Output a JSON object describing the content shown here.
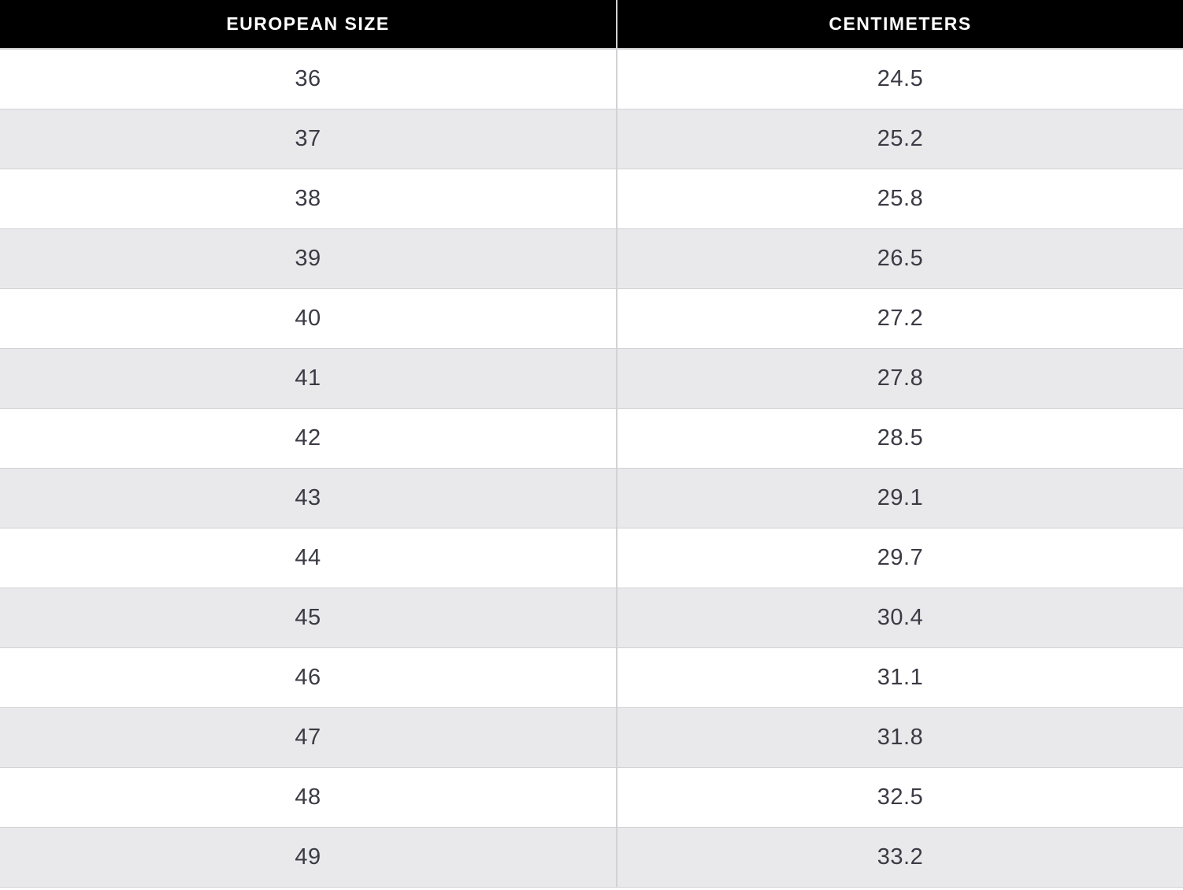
{
  "table": {
    "headers": [
      "EUROPEAN SIZE",
      "CENTIMETERS"
    ],
    "rows": [
      {
        "size": "36",
        "cm": "24.5"
      },
      {
        "size": "37",
        "cm": "25.2"
      },
      {
        "size": "38",
        "cm": "25.8"
      },
      {
        "size": "39",
        "cm": "26.5"
      },
      {
        "size": "40",
        "cm": "27.2"
      },
      {
        "size": "41",
        "cm": "27.8"
      },
      {
        "size": "42",
        "cm": "28.5"
      },
      {
        "size": "43",
        "cm": "29.1"
      },
      {
        "size": "44",
        "cm": "29.7"
      },
      {
        "size": "45",
        "cm": "30.4"
      },
      {
        "size": "46",
        "cm": "31.1"
      },
      {
        "size": "47",
        "cm": "31.8"
      },
      {
        "size": "48",
        "cm": "32.5"
      },
      {
        "size": "49",
        "cm": "33.2"
      }
    ]
  },
  "colors": {
    "header_bg": "#000000",
    "header_text": "#ffffff",
    "row_alt_bg": "#e9e8ea",
    "row_bg": "#ffffff",
    "border": "#d2d1d3",
    "text": "#3b3b45"
  },
  "chart_data": {
    "type": "table",
    "columns": [
      "EUROPEAN SIZE",
      "CENTIMETERS"
    ],
    "rows": [
      [
        36,
        24.5
      ],
      [
        37,
        25.2
      ],
      [
        38,
        25.8
      ],
      [
        39,
        26.5
      ],
      [
        40,
        27.2
      ],
      [
        41,
        27.8
      ],
      [
        42,
        28.5
      ],
      [
        43,
        29.1
      ],
      [
        44,
        29.7
      ],
      [
        45,
        30.4
      ],
      [
        46,
        31.1
      ],
      [
        47,
        31.8
      ],
      [
        48,
        32.5
      ],
      [
        49,
        33.2
      ]
    ]
  }
}
